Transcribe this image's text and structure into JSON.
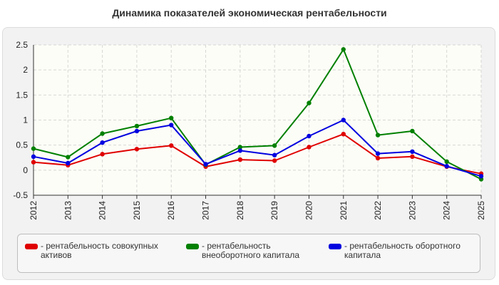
{
  "chart_data": {
    "type": "line",
    "title": "Динамика показателей экономическая рентабельности",
    "xlabel": "",
    "ylabel": "",
    "x": [
      "2012",
      "2013",
      "2014",
      "2015",
      "2016",
      "2017",
      "2018",
      "2019",
      "2020",
      "2021",
      "2022",
      "2023",
      "2024",
      "2025"
    ],
    "ylim": [
      -0.5,
      2.5
    ],
    "yticks": [
      "2.5",
      "2",
      "1.5",
      "1",
      "0.5",
      "0",
      "-0.5"
    ],
    "yticks_values": [
      2.5,
      2,
      1.5,
      1,
      0.5,
      0,
      -0.5
    ],
    "grid": true,
    "legend_position": "bottom",
    "series": [
      {
        "name": "- рентабельность совокупных активов",
        "color": "#e00000",
        "values": [
          0.16,
          0.1,
          0.32,
          0.42,
          0.49,
          0.07,
          0.21,
          0.19,
          0.46,
          0.72,
          0.24,
          0.27,
          0.07,
          -0.07
        ]
      },
      {
        "name": "- рентабельность внеоборотного капитала",
        "color": "#008000",
        "values": [
          0.43,
          0.26,
          0.73,
          0.88,
          1.04,
          0.11,
          0.46,
          0.49,
          1.34,
          2.41,
          0.7,
          0.78,
          0.17,
          -0.18
        ]
      },
      {
        "name": "- рентабельность оборотного капитала",
        "color": "#0000e0",
        "values": [
          0.27,
          0.14,
          0.55,
          0.78,
          0.9,
          0.12,
          0.39,
          0.3,
          0.68,
          1.0,
          0.33,
          0.37,
          0.08,
          -0.12
        ]
      }
    ]
  }
}
